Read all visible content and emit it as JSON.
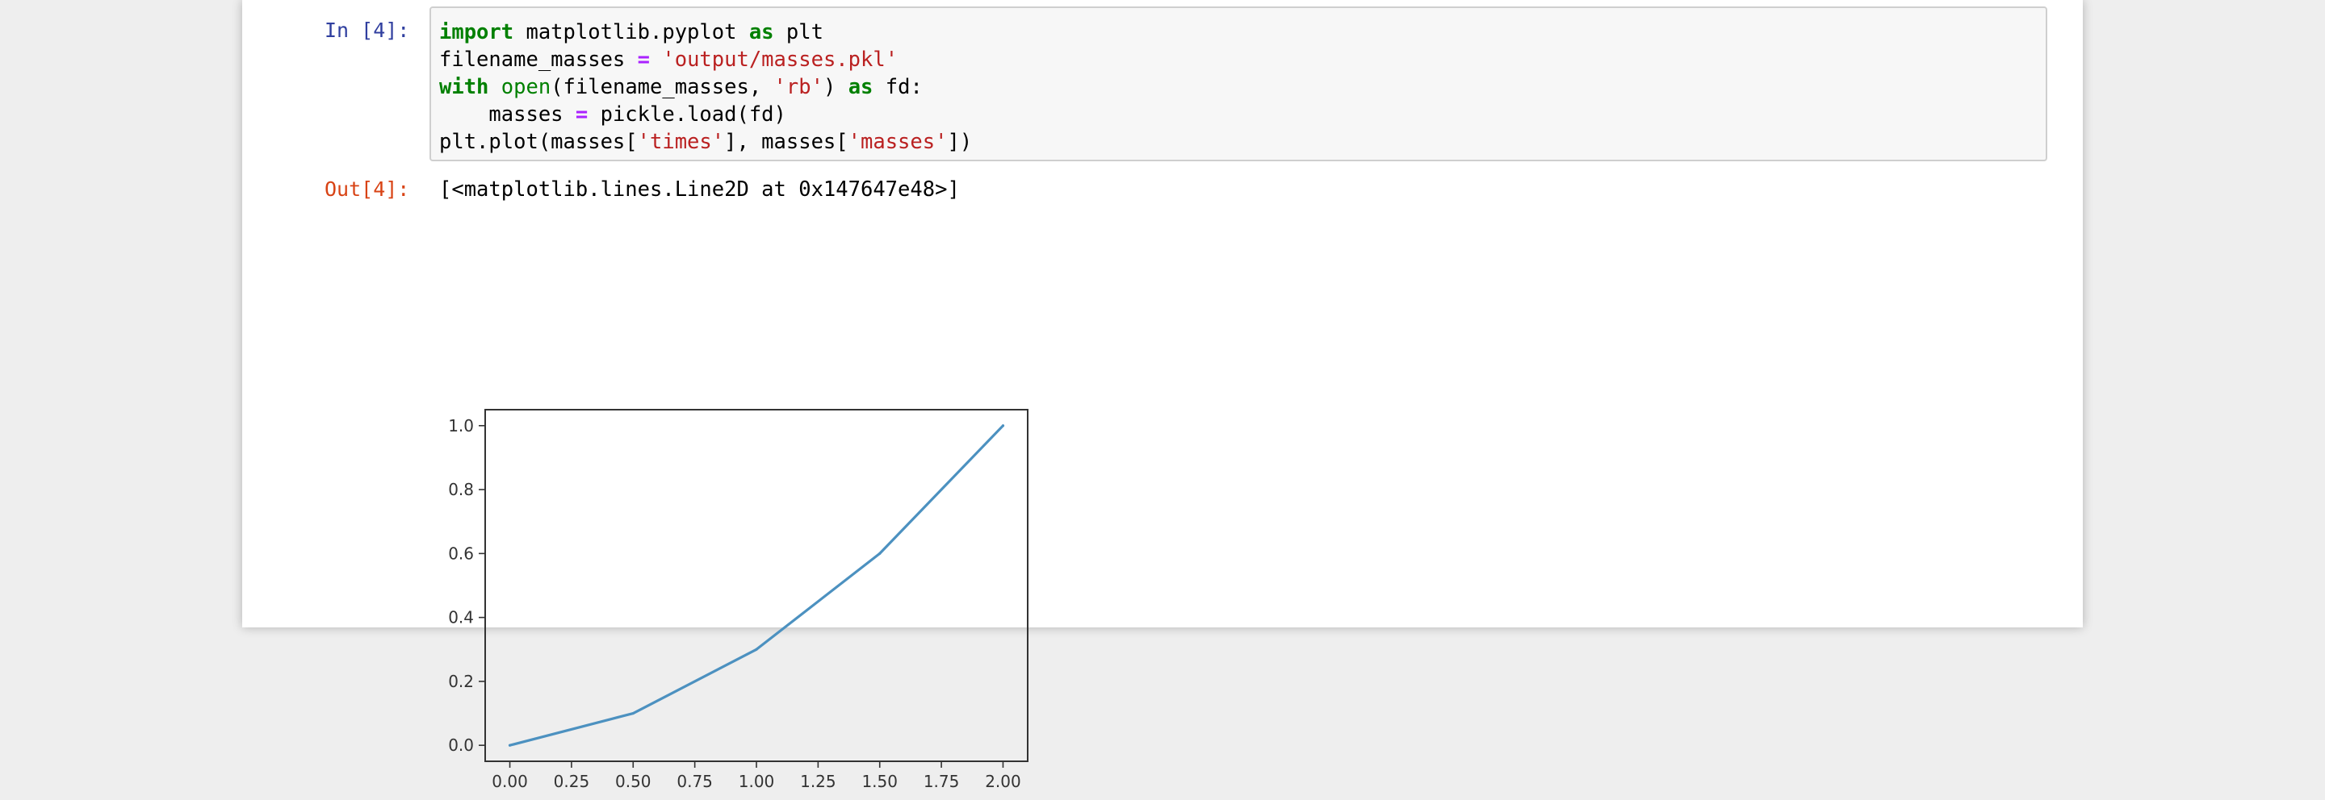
{
  "input_cell": {
    "prompt": "In [4]:",
    "code": {
      "line1": {
        "kw_import": "import",
        "module": " matplotlib.pyplot ",
        "kw_as": "as",
        "alias": " plt"
      },
      "line2": {
        "var": "filename_masses ",
        "op": "=",
        "space": " ",
        "str": "'output/masses.pkl'"
      },
      "line3": {
        "kw_with": "with",
        "space1": " ",
        "builtin_open": "open",
        "args_a": "(filename_masses, ",
        "str_rb": "'rb'",
        "args_b": ") ",
        "kw_as": "as",
        "tail": " fd:"
      },
      "line4": {
        "indent_var": "    masses ",
        "op": "=",
        "tail": " pickle.load(fd)"
      },
      "line5": {
        "head": "plt.plot(masses[",
        "str_times": "'times'",
        "mid": "], masses[",
        "str_masses": "'masses'",
        "tail": "])"
      }
    }
  },
  "output_cell": {
    "prompt": "Out[4]:",
    "text": "[<matplotlib.lines.Line2D at 0x147647e48>]"
  },
  "chart_data": {
    "type": "line",
    "x": [
      0.0,
      0.5,
      1.0,
      1.5,
      2.0
    ],
    "series": [
      {
        "values": [
          0.0,
          0.1,
          0.3,
          0.6,
          1.0
        ],
        "color": "#4c91c0"
      }
    ],
    "xlim": [
      -0.1,
      2.1
    ],
    "ylim": [
      -0.05,
      1.05
    ],
    "x_ticks": [
      "0.00",
      "0.25",
      "0.50",
      "0.75",
      "1.00",
      "1.25",
      "1.50",
      "1.75",
      "2.00"
    ],
    "y_ticks": [
      "0.0",
      "0.2",
      "0.4",
      "0.6",
      "0.8",
      "1.0"
    ],
    "grid": false,
    "title": "",
    "xlabel": "",
    "ylabel": ""
  }
}
